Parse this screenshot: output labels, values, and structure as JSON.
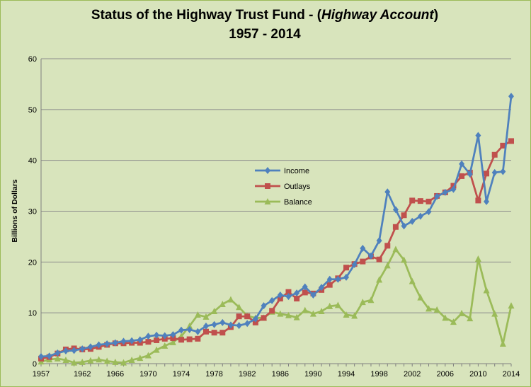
{
  "chart_data": {
    "type": "line",
    "title_line1_main": "Status of the Highway Trust Fund - (",
    "title_line1_italic": "Highway Account",
    "title_line1_end": ")",
    "title_line2": "1957 - 2014",
    "xlabel": "",
    "ylabel": "Billions of Dollars",
    "ylim": [
      0,
      60
    ],
    "yticks": [
      0,
      10,
      20,
      30,
      40,
      50,
      60
    ],
    "xlim": [
      1957,
      2014
    ],
    "xticks": [
      1957,
      1962,
      1966,
      1970,
      1974,
      1978,
      1982,
      1986,
      1990,
      1994,
      1998,
      2002,
      2006,
      2010,
      2014
    ],
    "legend_position": "center",
    "x": [
      1957,
      1958,
      1959,
      1960,
      1961,
      1962,
      1963,
      1964,
      1965,
      1966,
      1967,
      1968,
      1969,
      1970,
      1971,
      1972,
      1973,
      1974,
      1975,
      1976,
      1977,
      1978,
      1979,
      1980,
      1981,
      1982,
      1983,
      1984,
      1985,
      1986,
      1987,
      1988,
      1989,
      1990,
      1991,
      1992,
      1993,
      1994,
      1995,
      1996,
      1997,
      1998,
      1999,
      2000,
      2001,
      2002,
      2003,
      2004,
      2005,
      2006,
      2007,
      2008,
      2009,
      2010,
      2011,
      2012,
      2013,
      2014
    ],
    "series": [
      {
        "name": "Income",
        "color": "#4f81bd",
        "marker": "diamond",
        "values": [
          1.4,
          1.5,
          2.1,
          2.5,
          2.6,
          2.9,
          3.3,
          3.7,
          3.9,
          4.1,
          4.4,
          4.5,
          4.7,
          5.4,
          5.6,
          5.5,
          5.7,
          6.6,
          6.7,
          6.3,
          7.4,
          7.7,
          8.1,
          7.6,
          7.5,
          7.9,
          8.8,
          11.4,
          12.4,
          13.5,
          13.2,
          13.9,
          15.1,
          13.5,
          15.0,
          16.6,
          16.6,
          17.0,
          19.5,
          22.7,
          21.2,
          24.2,
          33.8,
          30.3,
          27.1,
          28.0,
          29.0,
          29.9,
          32.9,
          33.7,
          34.3,
          39.3,
          37.3,
          44.9,
          31.9,
          37.6,
          37.8,
          52.6
        ]
      },
      {
        "name": "Outlays",
        "color": "#c0504d",
        "marker": "square",
        "values": [
          1.0,
          1.3,
          2.0,
          2.8,
          3.0,
          2.8,
          2.9,
          3.3,
          3.7,
          4.0,
          4.0,
          4.1,
          4.1,
          4.3,
          4.6,
          4.9,
          5.0,
          4.7,
          4.8,
          4.9,
          6.3,
          6.1,
          6.1,
          7.2,
          9.3,
          9.3,
          8.1,
          9.0,
          10.4,
          12.8,
          14.1,
          12.8,
          14.0,
          13.8,
          14.5,
          15.5,
          16.8,
          18.9,
          19.6,
          20.1,
          21.1,
          20.5,
          23.2,
          26.9,
          29.2,
          32.1,
          32.0,
          31.9,
          33.0,
          33.7,
          35.0,
          36.9,
          37.6,
          32.1,
          37.4,
          41.1,
          42.9,
          43.8
        ]
      },
      {
        "name": "Balance",
        "color": "#9bbb59",
        "marker": "triangle",
        "values": [
          0.4,
          0.8,
          1.0,
          0.7,
          0.2,
          0.3,
          0.6,
          0.8,
          0.5,
          0.3,
          0.2,
          0.7,
          1.1,
          1.6,
          2.7,
          3.5,
          4.2,
          5.4,
          7.4,
          9.6,
          9.2,
          10.3,
          11.7,
          12.6,
          11.1,
          9.4,
          9.0,
          9.0,
          10.2,
          9.8,
          9.5,
          9.1,
          10.5,
          9.8,
          10.3,
          11.3,
          11.5,
          9.6,
          9.4,
          12.1,
          12.5,
          16.5,
          19.3,
          22.5,
          20.4,
          16.2,
          13.0,
          10.8,
          10.6,
          9.0,
          8.2,
          9.9,
          8.9,
          20.6,
          14.4,
          9.8,
          3.9,
          11.4
        ]
      }
    ]
  }
}
